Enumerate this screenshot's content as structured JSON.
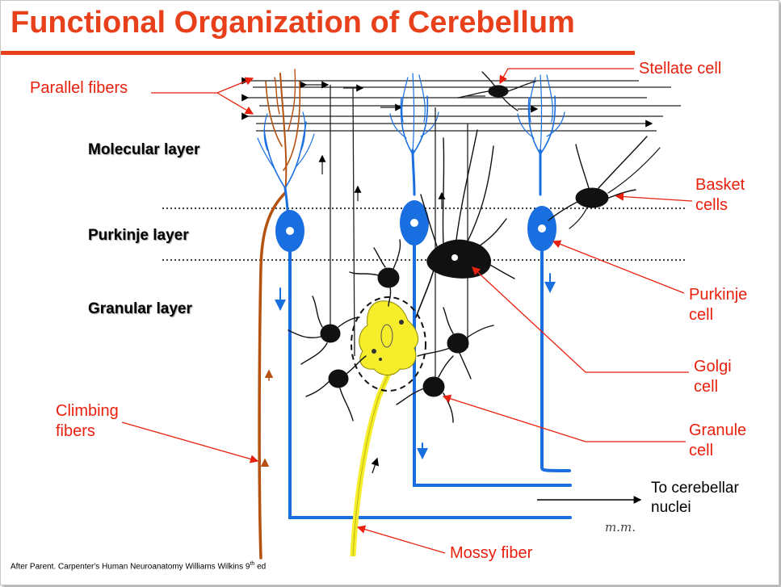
{
  "title": "Functional Organization of Cerebellum",
  "layers": {
    "molecular": "Molecular layer",
    "purkinje": "Purkinje layer",
    "granular": "Granular layer"
  },
  "labels": {
    "parallel_fibers": "Parallel fibers",
    "stellate_cell": "Stellate cell",
    "basket_cells_1": "Basket",
    "basket_cells_2": "cells",
    "purkinje_cell_1": "Purkinje",
    "purkinje_cell_2": "cell",
    "golgi_cell_1": "Golgi",
    "golgi_cell_2": "cell",
    "granule_cell_1": "Granule",
    "granule_cell_2": "cell",
    "climbing_fibers_1": "Climbing",
    "climbing_fibers_2": "fibers",
    "mossy_fiber": "Mossy fiber",
    "nuclei_1": "To cerebellar",
    "nuclei_2": "nuclei"
  },
  "credit": "After Parent. Carpenter's Human Neuroanatomy Williams Wilkins  9",
  "credit_sup": "th",
  "credit_tail": " ed",
  "signature": "m.m.",
  "colors": {
    "title": "#e8401a",
    "label": "#e8200e",
    "purkinje_blue": "#1a6fe0",
    "climbing_brown": "#b5520f",
    "mossy_yellow": "#f6ee2a",
    "neuron_black": "#111111"
  }
}
